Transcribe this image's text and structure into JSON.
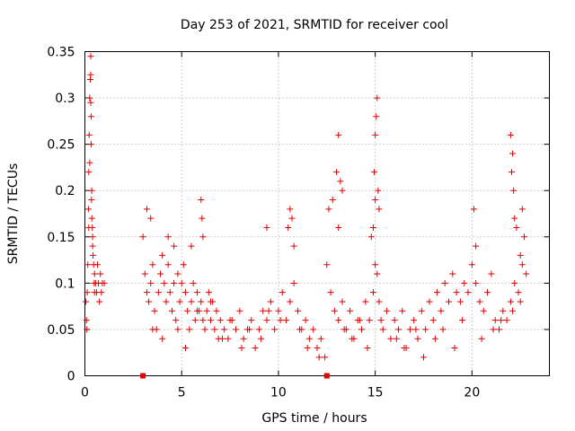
{
  "chart_data": {
    "type": "scatter",
    "title": "Day 253 of 2021, SRMTID for receiver cool",
    "xlabel": "GPS time / hours",
    "ylabel": "SRMTID / TECUs",
    "xlim": [
      0,
      24
    ],
    "ylim": [
      0,
      0.35
    ],
    "xticks": [
      0,
      5,
      10,
      15,
      20
    ],
    "xtick_labels": [
      "0",
      "5",
      "10",
      "15",
      "20"
    ],
    "yticks": [
      0,
      0.05,
      0.1,
      0.15,
      0.2,
      0.25,
      0.3,
      0.35
    ],
    "ytick_labels": [
      "0",
      "0.05",
      "0.1",
      "0.15",
      "0.2",
      "0.25",
      "0.3",
      "0.35"
    ],
    "grid": true,
    "marker": "plus",
    "color": "#e00000",
    "series": [
      {
        "name": "SRMTID",
        "x": [
          0.05,
          0.08,
          0.1,
          0.12,
          0.15,
          0.18,
          0.2,
          0.22,
          0.25,
          0.28,
          0.3,
          0.32,
          0.35,
          0.38,
          0.4,
          0.42,
          0.45,
          0.48,
          0.5,
          0.55,
          0.6,
          0.65,
          0.7,
          0.75,
          0.8,
          0.85,
          0.9,
          0.3,
          0.3,
          0.32,
          0.34,
          0.36,
          0.4,
          0.2,
          0.25,
          3.0,
          3.1,
          3.2,
          3.3,
          3.4,
          3.5,
          3.6,
          3.7,
          3.8,
          3.9,
          4.0,
          4.1,
          4.2,
          4.3,
          4.4,
          4.5,
          4.6,
          4.7,
          4.8,
          4.9,
          5.0,
          5.1,
          5.2,
          5.3,
          5.4,
          5.5,
          5.6,
          5.7,
          5.8,
          5.9,
          6.0,
          6.1,
          6.2,
          6.3,
          6.4,
          6.5,
          6.6,
          6.7,
          6.8,
          6.9,
          7.0,
          7.2,
          7.4,
          7.6,
          7.8,
          8.0,
          8.2,
          8.4,
          8.6,
          8.8,
          9.0,
          9.2,
          9.4,
          9.6,
          9.8,
          10.0,
          10.2,
          10.4,
          10.6,
          10.8,
          11.0,
          11.2,
          11.4,
          11.6,
          11.8,
          12.0,
          12.2,
          12.4,
          3.2,
          3.4,
          4.3,
          4.6,
          5.5,
          6.0,
          6.05,
          6.1,
          9.4,
          10.5,
          10.6,
          10.7,
          10.8,
          12.6,
          12.8,
          13.0,
          13.1,
          13.2,
          13.3,
          13.1,
          12.5,
          12.7,
          12.9,
          13.1,
          13.3,
          13.5,
          13.7,
          13.9,
          14.1,
          14.3,
          14.5,
          14.7,
          14.9,
          15.0,
          15.1,
          15.2,
          15.3,
          15.4,
          15.6,
          15.8,
          16.0,
          16.2,
          16.4,
          16.6,
          16.8,
          17.0,
          17.2,
          17.4,
          17.6,
          17.8,
          18.0,
          18.2,
          18.4,
          18.6,
          18.8,
          19.0,
          19.2,
          19.4,
          19.6,
          19.8,
          20.0,
          20.2,
          20.4,
          20.6,
          20.8,
          21.0,
          21.2,
          21.4,
          21.6,
          21.8,
          22.0,
          22.2,
          22.4,
          22.6,
          22.8,
          14.9,
          15.0,
          15.05,
          15.1,
          15.0,
          14.95,
          15.15,
          15.2,
          14.8,
          20.1,
          20.2,
          22.0,
          22.1,
          22.05,
          22.15,
          22.2,
          22.3,
          22.6,
          22.7,
          22.5,
          0.5,
          1.0,
          3.5,
          4.0,
          4.8,
          5.2,
          5.8,
          6.5,
          7.1,
          7.5,
          8.1,
          8.5,
          9.1,
          9.5,
          10.1,
          11.1,
          11.5,
          12.1,
          13.4,
          13.8,
          14.2,
          14.6,
          16.1,
          16.5,
          17.1,
          17.5,
          18.1,
          18.5,
          19.1,
          19.5,
          20.5,
          21.1,
          21.5,
          22.1,
          22.5
        ],
        "y": [
          0.08,
          0.06,
          0.05,
          0.09,
          0.12,
          0.18,
          0.22,
          0.26,
          0.3,
          0.32,
          0.345,
          0.28,
          0.2,
          0.16,
          0.15,
          0.13,
          0.12,
          0.1,
          0.11,
          0.1,
          0.09,
          0.12,
          0.1,
          0.08,
          0.11,
          0.09,
          0.1,
          0.325,
          0.295,
          0.25,
          0.19,
          0.17,
          0.14,
          0.16,
          0.23,
          0.15,
          0.11,
          0.09,
          0.08,
          0.1,
          0.12,
          0.07,
          0.05,
          0.09,
          0.11,
          0.13,
          0.1,
          0.08,
          0.12,
          0.09,
          0.07,
          0.1,
          0.06,
          0.11,
          0.08,
          0.1,
          0.12,
          0.09,
          0.07,
          0.05,
          0.08,
          0.1,
          0.06,
          0.09,
          0.07,
          0.08,
          0.06,
          0.05,
          0.07,
          0.09,
          0.06,
          0.08,
          0.05,
          0.07,
          0.04,
          0.06,
          0.05,
          0.04,
          0.06,
          0.05,
          0.07,
          0.04,
          0.05,
          0.06,
          0.03,
          0.05,
          0.07,
          0.06,
          0.08,
          0.05,
          0.07,
          0.09,
          0.06,
          0.08,
          0.1,
          0.07,
          0.05,
          0.06,
          0.04,
          0.05,
          0.03,
          0.04,
          0.02,
          0.18,
          0.17,
          0.15,
          0.14,
          0.14,
          0.19,
          0.17,
          0.15,
          0.16,
          0.16,
          0.18,
          0.17,
          0.14,
          0.18,
          0.19,
          0.22,
          0.26,
          0.21,
          0.2,
          0.16,
          0.12,
          0.09,
          0.07,
          0.06,
          0.08,
          0.05,
          0.07,
          0.04,
          0.06,
          0.05,
          0.08,
          0.06,
          0.09,
          0.12,
          0.11,
          0.08,
          0.06,
          0.05,
          0.07,
          0.04,
          0.06,
          0.05,
          0.07,
          0.03,
          0.05,
          0.06,
          0.04,
          0.07,
          0.05,
          0.08,
          0.06,
          0.09,
          0.07,
          0.1,
          0.08,
          0.11,
          0.09,
          0.08,
          0.1,
          0.09,
          0.12,
          0.1,
          0.08,
          0.07,
          0.09,
          0.11,
          0.06,
          0.05,
          0.07,
          0.06,
          0.08,
          0.1,
          0.09,
          0.12,
          0.11,
          0.16,
          0.19,
          0.28,
          0.3,
          0.26,
          0.22,
          0.2,
          0.18,
          0.15,
          0.18,
          0.14,
          0.26,
          0.24,
          0.22,
          0.2,
          0.17,
          0.16,
          0.18,
          0.15,
          0.13,
          0.09,
          0.1,
          0.05,
          0.04,
          0.05,
          0.03,
          0.07,
          0.08,
          0.04,
          0.06,
          0.03,
          0.05,
          0.04,
          0.07,
          0.06,
          0.05,
          0.03,
          0.02,
          0.05,
          0.04,
          0.06,
          0.03,
          0.04,
          0.03,
          0.05,
          0.02,
          0.04,
          0.05,
          0.03,
          0.06,
          0.04,
          0.05,
          0.06,
          0.07,
          0.08
        ]
      }
    ],
    "gap_markers": [
      {
        "x": 3.0,
        "y": 0
      },
      {
        "x": 12.5,
        "y": 0
      }
    ]
  }
}
